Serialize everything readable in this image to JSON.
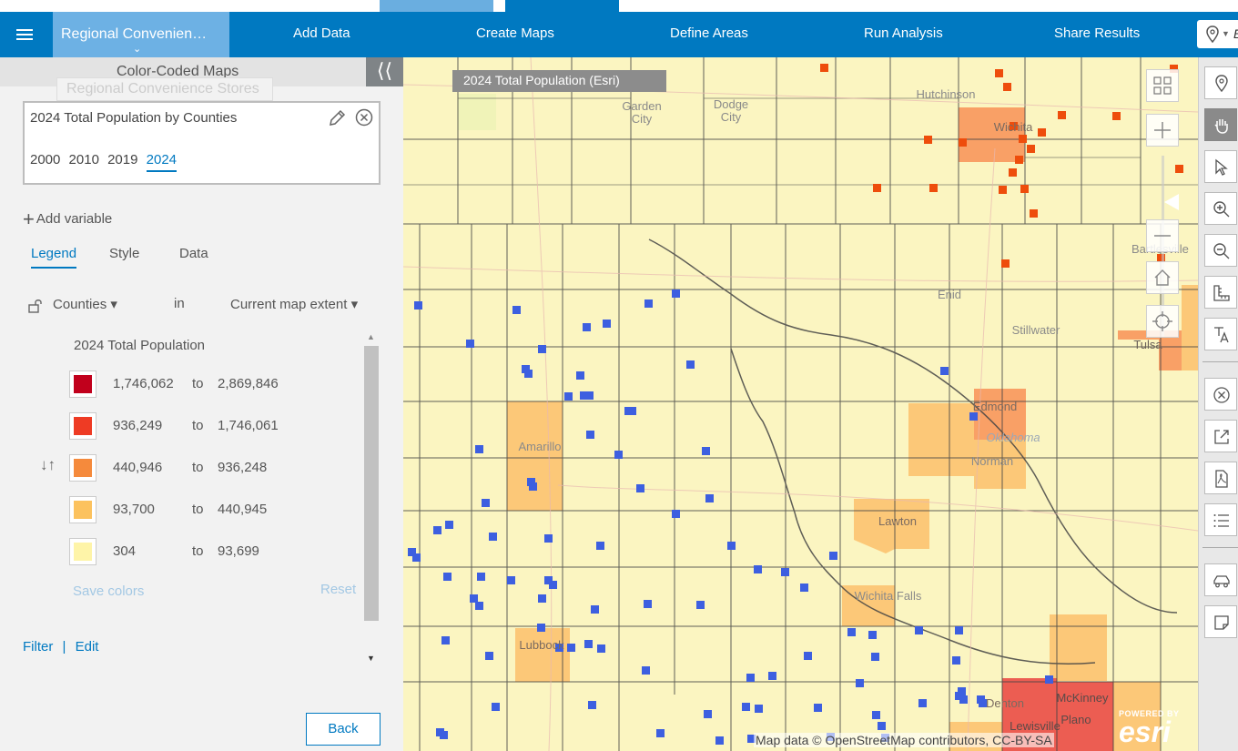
{
  "header": {
    "project_title": "Regional Convenien…",
    "nav": [
      "Add Data",
      "Create Maps",
      "Define Areas",
      "Run Analysis",
      "Share Results"
    ],
    "search_partial": "E"
  },
  "panel": {
    "title": "Color-Coded Maps",
    "ghost_title": "Regional Convenience Stores",
    "variable_name": "2024 Total Population by Counties",
    "years": [
      "2000",
      "2010",
      "2019",
      "2024"
    ],
    "selected_year": "2024",
    "add_variable": "Add variable",
    "tabs": [
      "Legend",
      "Style",
      "Data"
    ],
    "geography": "Counties",
    "in_label": "in",
    "extent": "Current map extent",
    "legend_title": "2024 Total Population",
    "classes": [
      {
        "color": "#c1001c",
        "from": "1,746,062",
        "to_label": "to",
        "to": "2,869,846"
      },
      {
        "color": "#ee3b24",
        "from": "936,249",
        "to_label": "to",
        "to": "1,746,061"
      },
      {
        "color": "#f58a3c",
        "from": "440,946",
        "to_label": "to",
        "to": "936,248"
      },
      {
        "color": "#fcc25e",
        "from": "93,700",
        "to_label": "to",
        "to": "440,945"
      },
      {
        "color": "#fef4a8",
        "from": "304",
        "to_label": "to",
        "to": "93,699"
      }
    ],
    "save_colors": "Save colors",
    "reset": "Reset",
    "filter": "Filter",
    "separator": "|",
    "edit": "Edit",
    "back": "Back"
  },
  "map": {
    "layer_label": "2024 Total Population (Esri)",
    "places": [
      "Garden City",
      "Dodge City",
      "Hutchinson",
      "Wichita",
      "Bartlesville",
      "Enid",
      "Stillwater",
      "Tulsa",
      "Edmond",
      "Oklahoma",
      "Norman",
      "Amarillo",
      "Lawton",
      "Wichita Falls",
      "Lubbock",
      "Denton",
      "McKinney",
      "Plano",
      "Lewisville"
    ],
    "attribution": "Map data © OpenStreetMap contributors, CC-BY-SA",
    "powered_by": "POWERED BY",
    "brand": "esri",
    "fill_colors": {
      "base": "#fbf5c1",
      "light": "#fdf0a5",
      "mid": "#fcc878",
      "orange": "#f9a066",
      "red": "#ec5d52",
      "store_blue": "#3d5fe0",
      "store_orange": "#ee4d0c"
    }
  }
}
